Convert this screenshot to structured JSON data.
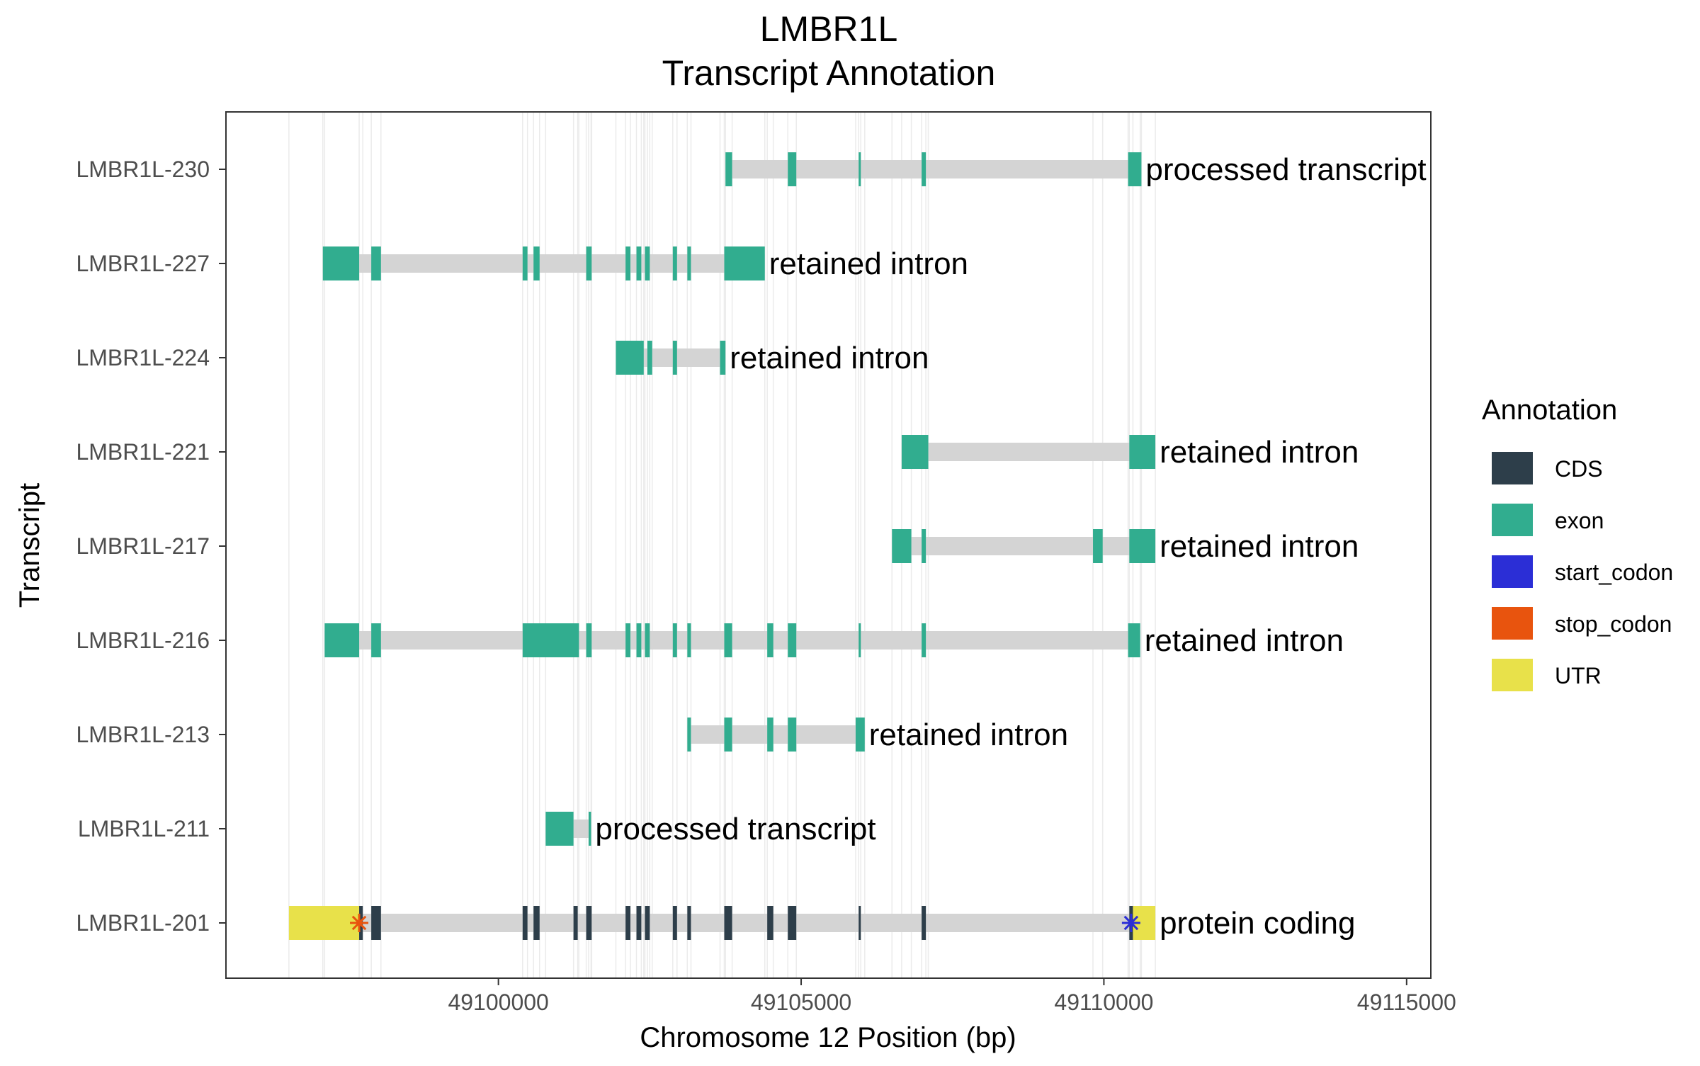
{
  "chart_data": {
    "type": "gene-transcript-annotation",
    "title": "LMBR1L",
    "subtitle": "Transcript Annotation",
    "xlabel": "Chromosome 12 Position (bp)",
    "ylabel": "Transcript",
    "xlim": [
      49095500,
      49115400
    ],
    "x_ticks": [
      49100000,
      49105000,
      49110000,
      49115000
    ],
    "grid": "vertical lines at exon boundaries",
    "legend": {
      "title": "Annotation",
      "placement": "right",
      "entries": [
        {
          "label": "CDS",
          "color": "#2d3e4a"
        },
        {
          "label": "exon",
          "color": "#31ad8f"
        },
        {
          "label": "start_codon",
          "color": "#2b2ed6"
        },
        {
          "label": "stop_codon",
          "color": "#e8540e"
        },
        {
          "label": "UTR",
          "color": "#e8e14a"
        }
      ]
    },
    "colors": {
      "intron": "#d4d4d4",
      "CDS": "#2d3e4a",
      "exon": "#31ad8f",
      "start_codon": "#2b2ed6",
      "stop_codon": "#e8540e",
      "UTR": "#e8e14a"
    },
    "transcripts": [
      {
        "name": "LMBR1L-230",
        "biotype": "processed transcript",
        "start": 49103750,
        "end": 49110620,
        "features": [
          {
            "type": "exon",
            "start": 49103750,
            "end": 49103860
          },
          {
            "type": "exon",
            "start": 49104780,
            "end": 49104920
          },
          {
            "type": "exon",
            "start": 49105950,
            "end": 49105985
          },
          {
            "type": "exon",
            "start": 49106990,
            "end": 49107060
          },
          {
            "type": "exon",
            "start": 49110400,
            "end": 49110620
          }
        ]
      },
      {
        "name": "LMBR1L-227",
        "biotype": "retained intron",
        "start": 49097100,
        "end": 49104400,
        "features": [
          {
            "type": "exon",
            "start": 49097100,
            "end": 49097700
          },
          {
            "type": "exon",
            "start": 49097900,
            "end": 49098060
          },
          {
            "type": "exon",
            "start": 49100400,
            "end": 49100480
          },
          {
            "type": "exon",
            "start": 49100580,
            "end": 49100680
          },
          {
            "type": "exon",
            "start": 49101450,
            "end": 49101540
          },
          {
            "type": "exon",
            "start": 49102100,
            "end": 49102180
          },
          {
            "type": "exon",
            "start": 49102280,
            "end": 49102360
          },
          {
            "type": "exon",
            "start": 49102420,
            "end": 49102500
          },
          {
            "type": "exon",
            "start": 49102880,
            "end": 49102950
          },
          {
            "type": "exon",
            "start": 49103120,
            "end": 49103180
          },
          {
            "type": "exon",
            "start": 49103730,
            "end": 49104400
          }
        ]
      },
      {
        "name": "LMBR1L-224",
        "biotype": "retained intron",
        "start": 49101940,
        "end": 49103750,
        "features": [
          {
            "type": "exon",
            "start": 49101940,
            "end": 49102400
          },
          {
            "type": "exon",
            "start": 49102460,
            "end": 49102540
          },
          {
            "type": "exon",
            "start": 49102880,
            "end": 49102950
          },
          {
            "type": "exon",
            "start": 49103660,
            "end": 49103750
          }
        ]
      },
      {
        "name": "LMBR1L-221",
        "biotype": "retained intron",
        "start": 49106660,
        "end": 49110850,
        "features": [
          {
            "type": "exon",
            "start": 49106660,
            "end": 49107100
          },
          {
            "type": "exon",
            "start": 49110420,
            "end": 49110850
          }
        ]
      },
      {
        "name": "LMBR1L-217",
        "biotype": "retained intron",
        "start": 49106500,
        "end": 49110850,
        "features": [
          {
            "type": "exon",
            "start": 49106500,
            "end": 49106820
          },
          {
            "type": "exon",
            "start": 49106990,
            "end": 49107060
          },
          {
            "type": "exon",
            "start": 49109820,
            "end": 49109980
          },
          {
            "type": "exon",
            "start": 49110420,
            "end": 49110850
          }
        ]
      },
      {
        "name": "LMBR1L-216",
        "biotype": "retained intron",
        "start": 49097130,
        "end": 49110600,
        "features": [
          {
            "type": "exon",
            "start": 49097130,
            "end": 49097700
          },
          {
            "type": "exon",
            "start": 49097900,
            "end": 49098060
          },
          {
            "type": "exon",
            "start": 49100400,
            "end": 49101330
          },
          {
            "type": "exon",
            "start": 49101450,
            "end": 49101540
          },
          {
            "type": "exon",
            "start": 49102100,
            "end": 49102180
          },
          {
            "type": "exon",
            "start": 49102280,
            "end": 49102360
          },
          {
            "type": "exon",
            "start": 49102420,
            "end": 49102500
          },
          {
            "type": "exon",
            "start": 49102880,
            "end": 49102950
          },
          {
            "type": "exon",
            "start": 49103120,
            "end": 49103180
          },
          {
            "type": "exon",
            "start": 49103730,
            "end": 49103860
          },
          {
            "type": "exon",
            "start": 49104440,
            "end": 49104540
          },
          {
            "type": "exon",
            "start": 49104780,
            "end": 49104920
          },
          {
            "type": "exon",
            "start": 49105950,
            "end": 49105985
          },
          {
            "type": "exon",
            "start": 49106990,
            "end": 49107060
          },
          {
            "type": "exon",
            "start": 49110400,
            "end": 49110600
          }
        ]
      },
      {
        "name": "LMBR1L-213",
        "biotype": "retained intron",
        "start": 49103120,
        "end": 49106050,
        "features": [
          {
            "type": "exon",
            "start": 49103120,
            "end": 49103180
          },
          {
            "type": "exon",
            "start": 49103730,
            "end": 49103860
          },
          {
            "type": "exon",
            "start": 49104440,
            "end": 49104540
          },
          {
            "type": "exon",
            "start": 49104780,
            "end": 49104920
          },
          {
            "type": "exon",
            "start": 49105900,
            "end": 49106050
          }
        ]
      },
      {
        "name": "LMBR1L-211",
        "biotype": "processed transcript",
        "start": 49100780,
        "end": 49101530,
        "features": [
          {
            "type": "exon",
            "start": 49100780,
            "end": 49101240
          },
          {
            "type": "exon",
            "start": 49101490,
            "end": 49101530
          }
        ]
      },
      {
        "name": "LMBR1L-201",
        "biotype": "protein coding",
        "start": 49096540,
        "end": 49110850,
        "features": [
          {
            "type": "UTR",
            "start": 49096540,
            "end": 49097700
          },
          {
            "type": "CDS",
            "start": 49097700,
            "end": 49097760
          },
          {
            "type": "CDS",
            "start": 49097900,
            "end": 49098060
          },
          {
            "type": "CDS",
            "start": 49100400,
            "end": 49100480
          },
          {
            "type": "CDS",
            "start": 49100580,
            "end": 49100680
          },
          {
            "type": "CDS",
            "start": 49101240,
            "end": 49101310
          },
          {
            "type": "CDS",
            "start": 49101450,
            "end": 49101540
          },
          {
            "type": "CDS",
            "start": 49102100,
            "end": 49102180
          },
          {
            "type": "CDS",
            "start": 49102280,
            "end": 49102360
          },
          {
            "type": "CDS",
            "start": 49102420,
            "end": 49102500
          },
          {
            "type": "CDS",
            "start": 49102880,
            "end": 49102950
          },
          {
            "type": "CDS",
            "start": 49103120,
            "end": 49103180
          },
          {
            "type": "CDS",
            "start": 49103730,
            "end": 49103860
          },
          {
            "type": "CDS",
            "start": 49104440,
            "end": 49104540
          },
          {
            "type": "CDS",
            "start": 49104780,
            "end": 49104920
          },
          {
            "type": "CDS",
            "start": 49105950,
            "end": 49105985
          },
          {
            "type": "CDS",
            "start": 49106990,
            "end": 49107060
          },
          {
            "type": "CDS",
            "start": 49110420,
            "end": 49110480
          },
          {
            "type": "UTR",
            "start": 49110480,
            "end": 49110850
          }
        ],
        "stop_codon": 49097700,
        "start_codon": 49110450
      }
    ]
  }
}
